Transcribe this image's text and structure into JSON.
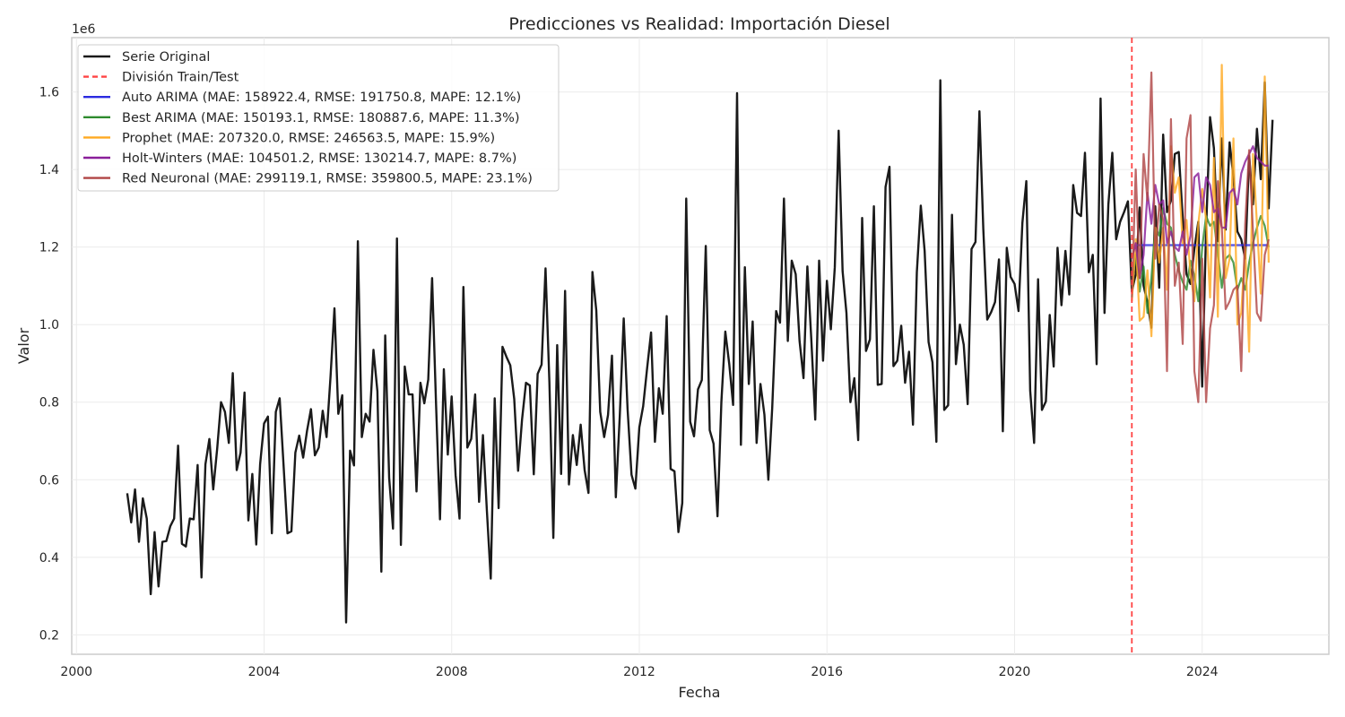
{
  "chart_data": {
    "type": "line",
    "title": "Predicciones vs Realidad: Importación Diesel",
    "xlabel": "Fecha",
    "ylabel": "Valor",
    "y_offset_label": "1e6",
    "y_multiplier": 1000000,
    "xlim": [
      1999.9,
      2026.7
    ],
    "ylim": [
      0.15,
      1.74
    ],
    "x_ticks": [
      2000,
      2004,
      2008,
      2012,
      2016,
      2020,
      2024
    ],
    "x_tick_labels": [
      "2000",
      "2004",
      "2008",
      "2012",
      "2016",
      "2020",
      "2024"
    ],
    "y_ticks": [
      0.2,
      0.4,
      0.6,
      0.8,
      1.0,
      1.2,
      1.4,
      1.6
    ],
    "y_tick_labels": [
      "0.2",
      "0.4",
      "0.6",
      "0.8",
      "1.0",
      "1.2",
      "1.4",
      "1.6"
    ],
    "grid": true,
    "legend_position": "top-left",
    "train_test_split": 2022.5,
    "series": [
      {
        "name": "Serie Original",
        "color": "#1a1a1a",
        "style": "solid",
        "x_start": 2001.083333,
        "x_step": 0.083333,
        "values": [
          0.565,
          0.49,
          0.575,
          0.44,
          0.552,
          0.5,
          0.305,
          0.465,
          0.325,
          0.44,
          0.442,
          0.48,
          0.5,
          0.688,
          0.435,
          0.428,
          0.5,
          0.498,
          0.638,
          0.348,
          0.64,
          0.705,
          0.575,
          0.68,
          0.8,
          0.775,
          0.695,
          0.875,
          0.625,
          0.67,
          0.825,
          0.495,
          0.615,
          0.433,
          0.64,
          0.745,
          0.763,
          0.462,
          0.775,
          0.81,
          0.635,
          0.462,
          0.467,
          0.67,
          0.714,
          0.657,
          0.726,
          0.782,
          0.663,
          0.683,
          0.778,
          0.71,
          0.865,
          1.042,
          0.77,
          0.818,
          0.232,
          0.675,
          0.637,
          1.215,
          0.71,
          0.77,
          0.75,
          0.935,
          0.828,
          0.363,
          0.972,
          0.605,
          0.474,
          1.222,
          0.432,
          0.892,
          0.82,
          0.82,
          0.57,
          0.85,
          0.797,
          0.858,
          1.12,
          0.795,
          0.498,
          0.885,
          0.665,
          0.815,
          0.612,
          0.5,
          1.097,
          0.683,
          0.705,
          0.82,
          0.543,
          0.715,
          0.52,
          0.345,
          0.81,
          0.527,
          0.943,
          0.917,
          0.895,
          0.808,
          0.623,
          0.755,
          0.85,
          0.843,
          0.614,
          0.873,
          0.897,
          1.145,
          0.852,
          0.45,
          0.947,
          0.615,
          1.087,
          0.588,
          0.715,
          0.638,
          0.742,
          0.625,
          0.566,
          1.136,
          1.037,
          0.775,
          0.71,
          0.767,
          0.92,
          0.555,
          0.765,
          1.016,
          0.782,
          0.613,
          0.577,
          0.735,
          0.79,
          0.888,
          0.98,
          0.698,
          0.836,
          0.77,
          1.022,
          0.628,
          0.622,
          0.465,
          0.54,
          1.325,
          0.75,
          0.712,
          0.833,
          0.857,
          1.203,
          0.728,
          0.693,
          0.506,
          0.8,
          0.982,
          0.898,
          0.793,
          1.597,
          0.69,
          1.148,
          0.847,
          1.008,
          0.695,
          0.847,
          0.768,
          0.6,
          0.785,
          1.035,
          1.005,
          1.325,
          0.958,
          1.165,
          1.13,
          0.958,
          0.862,
          1.15,
          0.962,
          0.755,
          1.165,
          0.907,
          1.113,
          0.988,
          1.148,
          1.5,
          1.138,
          1.03,
          0.8,
          0.862,
          0.702,
          1.275,
          0.932,
          0.962,
          1.305,
          0.845,
          0.847,
          1.355,
          1.407,
          0.893,
          0.907,
          0.997,
          0.85,
          0.93,
          0.742,
          1.135,
          1.307,
          1.19,
          0.955,
          0.903,
          0.698,
          1.63,
          0.78,
          0.792,
          1.283,
          0.898,
          1.0,
          0.948,
          0.795,
          1.195,
          1.213,
          1.55,
          1.248,
          1.013,
          1.032,
          1.058,
          1.168,
          0.725,
          1.198,
          1.123,
          1.105,
          1.035,
          1.262,
          1.37,
          0.83,
          0.695,
          1.117,
          0.78,
          0.802,
          1.025,
          0.892,
          1.198,
          1.05,
          1.19,
          1.078,
          1.36,
          1.288,
          1.28,
          1.443,
          1.135,
          1.18,
          0.898,
          1.583,
          1.03,
          1.31,
          1.443,
          1.22,
          1.265,
          1.29,
          1.318,
          1.085,
          1.13,
          1.302,
          1.1,
          1.057,
          0.992,
          1.305,
          1.095,
          1.49,
          1.29,
          1.32,
          1.44,
          1.445,
          1.275,
          1.13,
          1.105,
          1.195,
          1.265,
          0.84,
          1.245,
          1.535,
          1.455,
          1.215,
          1.48,
          1.245,
          1.47,
          1.38,
          1.24,
          1.22,
          1.17,
          1.435,
          1.31,
          1.505,
          1.375,
          1.625,
          1.3,
          1.528
        ]
      },
      {
        "name": "División Train/Test",
        "color": "#ff4444",
        "style": "dashed"
      },
      {
        "name": "Auto ARIMA (MAE: 158922.4, RMSE: 191750.8, MAPE: 12.1%)",
        "color": "#2a2ae0",
        "style": "solid",
        "x_start": 2022.583333,
        "x_step": 0.083333,
        "values": [
          1.205,
          1.205,
          1.205,
          1.205,
          1.205,
          1.205,
          1.205,
          1.205,
          1.205,
          1.205,
          1.205,
          1.205,
          1.205,
          1.205,
          1.205,
          1.205,
          1.205,
          1.205,
          1.205,
          1.205,
          1.205,
          1.205,
          1.205,
          1.205,
          1.205,
          1.205,
          1.205,
          1.205,
          1.205,
          1.205,
          1.205,
          1.205,
          1.205,
          1.205,
          1.205
        ]
      },
      {
        "name": "Best ARIMA (MAE: 150193.1, RMSE: 180887.6, MAPE: 11.3%)",
        "color": "#2e8b2e",
        "style": "solid",
        "x_start": 2022.5,
        "x_step": 0.083333,
        "values": [
          1.1,
          1.18,
          1.085,
          1.15,
          1.03,
          1.12,
          1.25,
          1.23,
          1.3,
          1.26,
          1.25,
          1.18,
          1.14,
          1.11,
          1.09,
          1.165,
          1.125,
          1.06,
          1.2,
          1.28,
          1.255,
          1.265,
          1.185,
          1.095,
          1.17,
          1.18,
          1.16,
          1.09,
          1.12,
          1.09,
          1.16,
          1.21,
          1.25,
          1.28,
          1.255,
          1.2
        ]
      },
      {
        "name": "Prophet (MAE: 207320.0, RMSE: 246563.5, MAPE: 15.9%)",
        "color": "#ffaa22",
        "style": "solid",
        "x_start": 2022.5,
        "x_step": 0.083333,
        "values": [
          1.06,
          1.22,
          1.01,
          1.02,
          1.14,
          0.97,
          1.25,
          1.16,
          1.25,
          1.09,
          1.46,
          1.34,
          1.38,
          1.21,
          1.27,
          1.13,
          1.06,
          1.26,
          1.35,
          1.27,
          1.07,
          1.43,
          1.02,
          1.67,
          1.12,
          1.17,
          1.48,
          1.0,
          1.03,
          1.2,
          0.93,
          1.44,
          1.26,
          1.08,
          1.64,
          1.16
        ]
      },
      {
        "name": "Holt-Winters (MAE: 104501.2, RMSE: 130214.7, MAPE: 8.7%)",
        "color": "#8a1f9a",
        "style": "solid",
        "x_start": 2022.5,
        "x_step": 0.083333,
        "values": [
          1.17,
          1.21,
          1.12,
          1.18,
          1.34,
          1.26,
          1.36,
          1.31,
          1.32,
          1.21,
          1.24,
          1.2,
          1.19,
          1.24,
          1.18,
          1.23,
          1.38,
          1.39,
          1.29,
          1.38,
          1.36,
          1.29,
          1.3,
          1.25,
          1.25,
          1.34,
          1.35,
          1.31,
          1.39,
          1.42,
          1.44,
          1.46,
          1.43,
          1.42,
          1.41,
          1.41
        ]
      },
      {
        "name": "Red Neuronal (MAE: 299119.1, RMSE: 359800.5, MAPE: 23.1%)",
        "color": "#b04545",
        "style": "solid",
        "x_start": 2022.5,
        "x_step": 0.083333,
        "values": [
          1.07,
          1.4,
          1.12,
          1.44,
          1.32,
          1.65,
          1.17,
          1.31,
          1.27,
          0.88,
          1.53,
          1.1,
          1.16,
          0.95,
          1.48,
          1.54,
          0.88,
          0.8,
          1.17,
          0.8,
          0.99,
          1.05,
          1.37,
          1.25,
          1.04,
          1.06,
          1.09,
          1.1,
          0.88,
          1.26,
          1.45,
          1.24,
          1.03,
          1.01,
          1.18,
          1.22
        ]
      }
    ]
  }
}
